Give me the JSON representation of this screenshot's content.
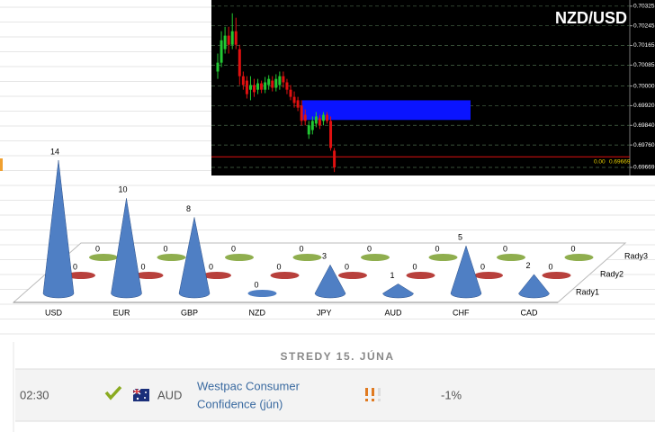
{
  "chart_data": [
    {
      "type": "cone3d",
      "categories": [
        "USD",
        "EUR",
        "GBP",
        "NZD",
        "JPY",
        "AUD",
        "CHF",
        "CAD"
      ],
      "series": [
        {
          "name": "Rady1",
          "color": "#4f7fc4",
          "values": [
            14,
            10,
            8,
            0,
            3,
            1,
            5,
            2
          ]
        },
        {
          "name": "Rady2",
          "color": "#b8403c",
          "values": [
            0,
            0,
            0,
            0,
            0,
            0,
            0,
            0
          ]
        },
        {
          "name": "Rady3",
          "color": "#8fae4e",
          "values": [
            0,
            0,
            0,
            0,
            0,
            0,
            0,
            0
          ]
        }
      ]
    },
    {
      "type": "candlestick",
      "title": "NZD/USD",
      "ylim": [
        0.69636,
        0.7035
      ],
      "yticks": [
        0.70325,
        0.70245,
        0.70165,
        0.70085,
        {
          "value": 0.7,
          "label": "0.70000"
        },
        {
          "value": 0.6992,
          "label": "0.69920"
        },
        {
          "value": 0.6984,
          "label": "0.69840"
        },
        {
          "value": 0.6976,
          "label": "0.69760"
        },
        0.69669
      ],
      "grid": true,
      "up_color": "#22c832",
      "down_color": "#e01010",
      "open": [
        0.70059,
        0.70095,
        0.7015,
        0.70205,
        0.70168,
        0.70223,
        0.7015,
        0.7004,
        0.70022,
        0.69985,
        0.70004,
        0.69985,
        0.70011,
        0.69985,
        0.70004,
        0.70022,
        0.69993,
        0.70004,
        0.7004,
        0.70015,
        0.69985,
        0.69956,
        0.69942,
        0.6992,
        0.69883,
        0.69803,
        0.69821,
        0.69847,
        0.69869,
        0.69858,
        0.69883,
        0.69858,
        0.69737
      ],
      "high": [
        0.70132,
        0.70223,
        0.70241,
        0.70241,
        0.70296,
        0.70278,
        0.70168,
        0.70059,
        0.7004,
        0.7004,
        0.70029,
        0.70029,
        0.70022,
        0.70037,
        0.70044,
        0.7004,
        0.70048,
        0.70059,
        0.70059,
        0.70029,
        0.70004,
        0.69978,
        0.69956,
        0.69942,
        0.69905,
        0.69858,
        0.69876,
        0.69894,
        0.69883,
        0.69894,
        0.69894,
        0.69876,
        0.69748
      ],
      "low": [
        0.70029,
        0.70077,
        0.70132,
        0.70132,
        0.7015,
        0.7015,
        0.70004,
        0.69985,
        0.69949,
        0.69942,
        0.69956,
        0.69967,
        0.69971,
        0.69971,
        0.69985,
        0.69978,
        0.69978,
        0.69985,
        0.69993,
        0.69967,
        0.69942,
        0.69912,
        0.69898,
        0.6984,
        0.6984,
        0.69785,
        0.69803,
        0.69832,
        0.69825,
        0.6984,
        0.69847,
        0.69737,
        0.6965
      ],
      "close": [
        0.70095,
        0.70186,
        0.70205,
        0.70168,
        0.70223,
        0.70168,
        0.7004,
        0.70004,
        0.69967,
        0.70004,
        0.69975,
        0.70011,
        0.69985,
        0.70015,
        0.70029,
        0.69993,
        0.70029,
        0.7004,
        0.70015,
        0.69985,
        0.69956,
        0.69931,
        0.69912,
        0.69858,
        0.69858,
        0.6984,
        0.69858,
        0.69876,
        0.6984,
        0.69883,
        0.69858,
        0.69748,
        0.69669
      ],
      "zone": {
        "low": 0.69862,
        "high": 0.69942,
        "color": "#0a14ff"
      },
      "hline": {
        "value": 0.69712,
        "color": "#e01010"
      },
      "annotations": [
        "0.00",
        "0.69669"
      ]
    }
  ],
  "calendar": {
    "header": "STREDY 15. JÚNA",
    "row": {
      "time": "02:30",
      "currency": "AUD",
      "event": [
        "Westpac Consumer",
        "Confidence (jún)"
      ],
      "actual": "-1%"
    }
  }
}
